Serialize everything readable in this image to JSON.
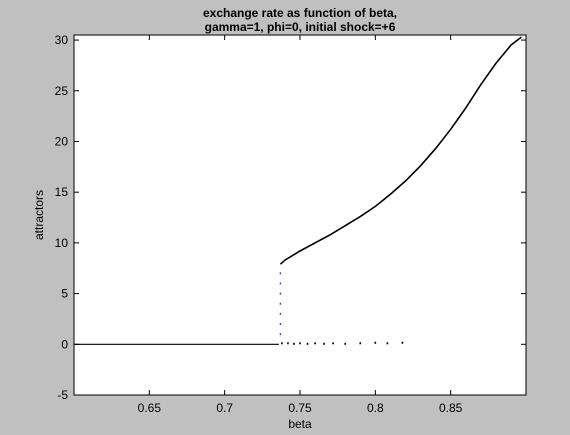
{
  "chart_data": {
    "type": "scatter",
    "title_lines": [
      "exchange rate as function of beta,",
      "gamma=1, phi=0, initial shock=+6"
    ],
    "xlabel": "beta",
    "ylabel": "attractors",
    "xlim": [
      0.6,
      0.9
    ],
    "ylim": [
      -5,
      30.5
    ],
    "x_ticks": [
      0.65,
      0.7,
      0.75,
      0.8,
      0.85
    ],
    "x_tick_labels": [
      "0.65",
      "0.7",
      "0.75",
      "0.8",
      "0.85"
    ],
    "y_ticks": [
      -5,
      0,
      5,
      10,
      15,
      20,
      25,
      30
    ],
    "y_tick_labels": [
      "-5",
      "0",
      "5",
      "10",
      "15",
      "20",
      "25",
      "30"
    ],
    "grid": false,
    "colors": {
      "figure_bg": "#c0c0c0",
      "axes_bg": "#ffffff",
      "data": "#000000",
      "transition_points": "#1f4fbf"
    },
    "series": [
      {
        "points": [
          [
            0.6,
            0
          ],
          [
            0.65,
            0
          ],
          [
            0.7,
            0
          ],
          [
            0.73,
            0
          ],
          [
            0.736,
            0
          ],
          [
            0.737,
            7.9
          ],
          [
            0.74,
            8.3
          ],
          [
            0.75,
            9.2
          ],
          [
            0.76,
            10.0
          ],
          [
            0.77,
            10.8
          ],
          [
            0.78,
            11.7
          ],
          [
            0.79,
            12.6
          ],
          [
            0.8,
            13.6
          ],
          [
            0.81,
            14.8
          ],
          [
            0.82,
            16.1
          ],
          [
            0.83,
            17.6
          ],
          [
            0.84,
            19.3
          ],
          [
            0.85,
            21.2
          ],
          [
            0.86,
            23.3
          ],
          [
            0.87,
            25.6
          ],
          [
            0.88,
            27.7
          ],
          [
            0.89,
            29.5
          ],
          [
            0.897,
            30.3
          ]
        ]
      },
      {
        "points": [
          [
            0.737,
            1.0
          ],
          [
            0.737,
            2.0
          ],
          [
            0.737,
            3.0
          ],
          [
            0.737,
            4.0
          ],
          [
            0.737,
            5.0
          ],
          [
            0.737,
            6.0
          ],
          [
            0.737,
            7.0
          ]
        ]
      },
      {
        "points": [
          [
            0.738,
            0.1
          ],
          [
            0.742,
            0.1
          ],
          [
            0.746,
            0.05
          ],
          [
            0.75,
            0.1
          ],
          [
            0.755,
            0.05
          ],
          [
            0.76,
            0.1
          ],
          [
            0.766,
            0.05
          ],
          [
            0.772,
            0.1
          ],
          [
            0.78,
            0.05
          ],
          [
            0.79,
            0.1
          ],
          [
            0.8,
            0.15
          ],
          [
            0.808,
            0.1
          ],
          [
            0.818,
            0.15
          ]
        ]
      }
    ]
  }
}
